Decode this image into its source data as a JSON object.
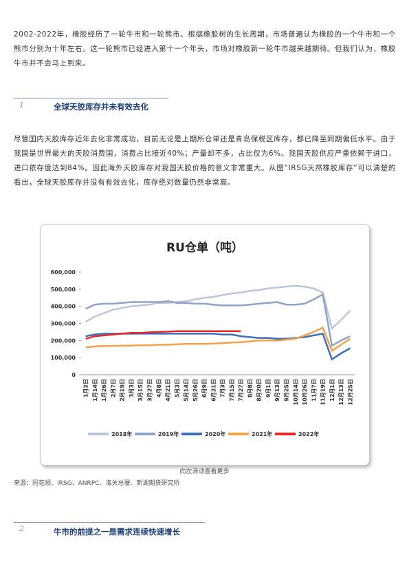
{
  "intro": "2002-2022年，橡胶经历了一轮牛市和一轮熊市。根据橡胶树的生长周期，市场普遍认为橡胶的一个牛市和一个熊市分别为十年左右。这一轮熊市已经进入第十一个年头，市场对橡胶新一轮牛市越来越期待。但我们认为，橡胶牛市并不会马上到来。",
  "sections": [
    {
      "number": "1",
      "title": "全球天胶库存并未有效去化",
      "body": "尽管国内天胶库存近年去化非常成功，目前无论是上期所仓单还是青岛保税区库存，都已降至同期偏低水平。由于我国是世界最大的天胶消费国，消费占比接近40%；产量却不多，占比仅为6%。我国天胶供应严重依赖于进口，进口依存度达到84%。因此海外天胶库存对我国天胶价格的意义非常重大。从图“IRSG天然橡胶库存”可以清楚的看出，全球天胶库存并没有有效去化，库存绝对数量仍然非常高。"
    },
    {
      "number": "2",
      "title": "牛市的前提之一是需求连续快速增长"
    }
  ],
  "chart_caption": "向左滑动查看更多",
  "source": "来源：同花顺、IRSG、ANRPC、海关总署、新湖期货研究所",
  "chart_data": {
    "type": "line",
    "title": "RU仓单（吨）",
    "categories": [
      "1月2日",
      "1月14日",
      "1月26日",
      "2月7日",
      "2月19日",
      "3月3日",
      "3月15日",
      "3月27日",
      "4月8日",
      "4月21日",
      "5月3日",
      "5月14日",
      "5月26日",
      "6月9日",
      "6月21日",
      "7月3日",
      "7月15日",
      "7月27日",
      "8月8日",
      "8月20日",
      "9月1日",
      "9月13日",
      "9月25日",
      "10月14日",
      "10月26日",
      "11月7日",
      "11月19日",
      "12月1日",
      "12月13日",
      "12月25日"
    ],
    "ylim": [
      0,
      600000
    ],
    "yticks": [
      0,
      {
        "value": 100000,
        "label": "100,000"
      },
      {
        "value": 200000,
        "label": "200,000"
      },
      {
        "value": 300000,
        "label": "300,000"
      },
      {
        "value": 400000,
        "label": "400,000"
      },
      {
        "value": 500000,
        "label": "500,000"
      },
      {
        "value": 600000,
        "label": "600,000"
      }
    ],
    "grid": false,
    "legend": "bottom",
    "series": [
      {
        "name": "2018年",
        "color": "#bcc6d9",
        "values": [
          310000,
          340000,
          360000,
          380000,
          390000,
          400000,
          405000,
          410000,
          420000,
          420000,
          425000,
          430000,
          440000,
          450000,
          455000,
          465000,
          475000,
          480000,
          490000,
          495000,
          505000,
          510000,
          515000,
          520000,
          515000,
          505000,
          480000,
          270000,
          320000,
          375000
        ]
      },
      {
        "name": "2019年",
        "color": "#8fa3c8",
        "values": [
          385000,
          410000,
          415000,
          415000,
          420000,
          425000,
          425000,
          425000,
          425000,
          430000,
          420000,
          420000,
          415000,
          415000,
          410000,
          405000,
          405000,
          405000,
          410000,
          415000,
          420000,
          425000,
          410000,
          410000,
          415000,
          440000,
          470000,
          170000,
          200000,
          225000
        ]
      },
      {
        "name": "2020年",
        "color": "#3e6fb5",
        "values": [
          225000,
          235000,
          240000,
          240000,
          240000,
          240000,
          240000,
          240000,
          240000,
          240000,
          240000,
          240000,
          240000,
          240000,
          240000,
          235000,
          235000,
          225000,
          220000,
          215000,
          215000,
          210000,
          210000,
          215000,
          220000,
          230000,
          240000,
          90000,
          125000,
          155000
        ]
      },
      {
        "name": "2021年",
        "color": "#f4a14c",
        "values": [
          160000,
          165000,
          168000,
          168000,
          170000,
          170000,
          172000,
          172000,
          175000,
          175000,
          178000,
          180000,
          180000,
          180000,
          182000,
          185000,
          188000,
          190000,
          195000,
          200000,
          200000,
          200000,
          205000,
          210000,
          230000,
          250000,
          275000,
          140000,
          175000,
          210000
        ]
      },
      {
        "name": "2022年",
        "color": "#e8262a",
        "values": [
          210000,
          225000,
          230000,
          235000,
          240000,
          245000,
          245000,
          248000,
          250000,
          252000,
          255000,
          255000,
          255000,
          255000,
          255000,
          255000,
          255000,
          255000,
          null,
          null,
          null,
          null,
          null,
          null,
          null,
          null,
          null,
          null,
          null,
          null
        ]
      }
    ]
  }
}
